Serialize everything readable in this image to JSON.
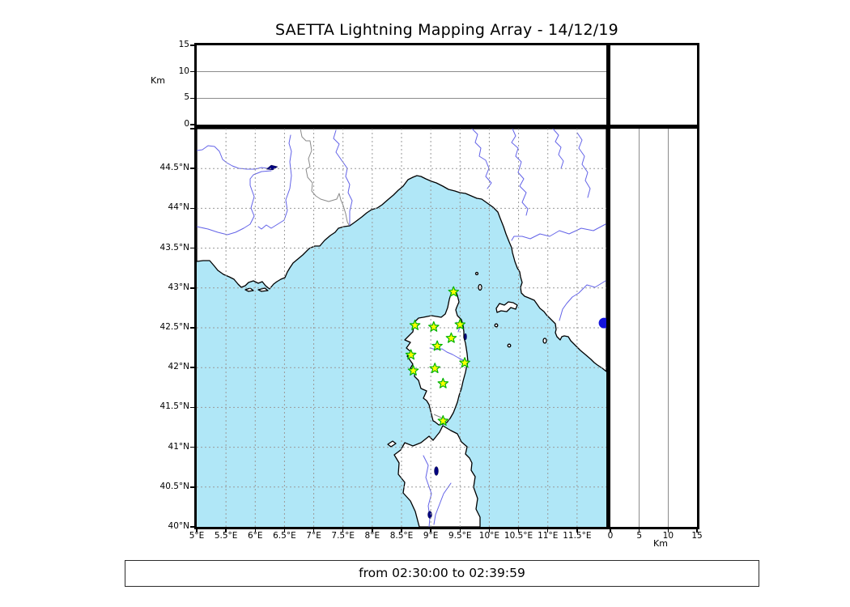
{
  "title": "SAETTA Lightning Mapping Array - 14/12/19",
  "footer": {
    "text": "from 02:30:00 to 02:39:59"
  },
  "colors": {
    "sea": "#b0e7f7",
    "land": "#ffffff",
    "coastline": "#000000",
    "river": "#6363e8",
    "country_border": "#8a8a8a",
    "grid": "#9a9a9a",
    "star_fill": "#ffff00",
    "star_stroke": "#00b400",
    "lake": "#000080",
    "lake_dot": "#1414dd"
  },
  "map_axes": {
    "lon_min": 5,
    "lon_max": 12,
    "lat_min": 40,
    "lat_max": 45,
    "grid_step_deg": 0.5,
    "lon_tick_labels": [
      {
        "v": 5,
        "label": "5°E"
      },
      {
        "v": 5.5,
        "label": "5.5°E"
      },
      {
        "v": 6,
        "label": "6°E"
      },
      {
        "v": 6.5,
        "label": "6.5°E"
      },
      {
        "v": 7,
        "label": "7°E"
      },
      {
        "v": 7.5,
        "label": "7.5°E"
      },
      {
        "v": 8,
        "label": "8°E"
      },
      {
        "v": 8.5,
        "label": "8.5°E"
      },
      {
        "v": 9,
        "label": "9°E"
      },
      {
        "v": 9.5,
        "label": "9.5°E"
      },
      {
        "v": 10,
        "label": "10°E"
      },
      {
        "v": 10.5,
        "label": "10.5°E"
      },
      {
        "v": 11,
        "label": "11°E"
      },
      {
        "v": 11.5,
        "label": "11.5°E"
      }
    ],
    "lat_tick_labels": [
      {
        "v": 44.5,
        "label": "44.5°N"
      },
      {
        "v": 44,
        "label": "44°N"
      },
      {
        "v": 43.5,
        "label": "43.5°N"
      },
      {
        "v": 43,
        "label": "43°N"
      },
      {
        "v": 42.5,
        "label": "42.5°N"
      },
      {
        "v": 42,
        "label": "42°N"
      },
      {
        "v": 41.5,
        "label": "41.5°N"
      },
      {
        "v": 41,
        "label": "41°N"
      },
      {
        "v": 40.5,
        "label": "40.5°N"
      },
      {
        "v": 40,
        "label": "40°N"
      }
    ]
  },
  "alt_axis": {
    "label": "Km",
    "min": 0,
    "max": 15,
    "tick_labels": [
      {
        "v": 0,
        "label": "0"
      },
      {
        "v": 5,
        "label": "5"
      },
      {
        "v": 10,
        "label": "10"
      },
      {
        "v": 15,
        "label": "15"
      }
    ],
    "gridlines": [
      5,
      10
    ]
  },
  "stations": [
    {
      "lon": 9.39,
      "lat": 42.95
    },
    {
      "lon": 8.73,
      "lat": 42.53
    },
    {
      "lon": 9.05,
      "lat": 42.51
    },
    {
      "lon": 9.5,
      "lat": 42.54
    },
    {
      "lon": 9.35,
      "lat": 42.37
    },
    {
      "lon": 9.11,
      "lat": 42.27
    },
    {
      "lon": 8.66,
      "lat": 42.16
    },
    {
      "lon": 9.58,
      "lat": 42.06
    },
    {
      "lon": 9.07,
      "lat": 41.99
    },
    {
      "lon": 8.7,
      "lat": 41.96
    },
    {
      "lon": 9.21,
      "lat": 41.8
    },
    {
      "lon": 9.21,
      "lat": 41.33
    }
  ],
  "lake_marker": {
    "lon": 11.96,
    "lat": 42.56
  },
  "chart_data": {
    "type": "scatter",
    "title": "SAETTA Lightning Mapping Array - 14/12/19",
    "time_window": "from 02:30:00 to 02:39:59",
    "panels": [
      {
        "id": "altitude-vs-longitude",
        "ylabel": "Km",
        "xlim": [
          5,
          12
        ],
        "ylim": [
          0,
          15
        ],
        "yticks": [
          0,
          5,
          10,
          15
        ],
        "grid": "horizontal at 5 and 10",
        "points": []
      },
      {
        "id": "plan-view-map",
        "xlim_lon_E": [
          5,
          12
        ],
        "ylim_lat_N": [
          40,
          45
        ],
        "grid_step": 0.5,
        "station_markers_lon_lat": [
          [
            9.39,
            42.95
          ],
          [
            8.73,
            42.53
          ],
          [
            9.05,
            42.51
          ],
          [
            9.5,
            42.54
          ],
          [
            9.35,
            42.37
          ],
          [
            9.11,
            42.27
          ],
          [
            8.66,
            42.16
          ],
          [
            9.58,
            42.06
          ],
          [
            9.07,
            41.99
          ],
          [
            8.7,
            41.96
          ],
          [
            9.21,
            41.8
          ],
          [
            9.21,
            41.33
          ]
        ],
        "lake_marker_lon_lat": [
          [
            11.96,
            42.56
          ]
        ],
        "points": []
      },
      {
        "id": "altitude-vs-latitude",
        "xlabel": "Km",
        "xlim": [
          0,
          15
        ],
        "ylim": [
          40,
          45
        ],
        "xticks": [
          0,
          5,
          10,
          15
        ],
        "grid": "vertical at 5 and 10",
        "points": []
      }
    ],
    "legend_position": "none"
  }
}
